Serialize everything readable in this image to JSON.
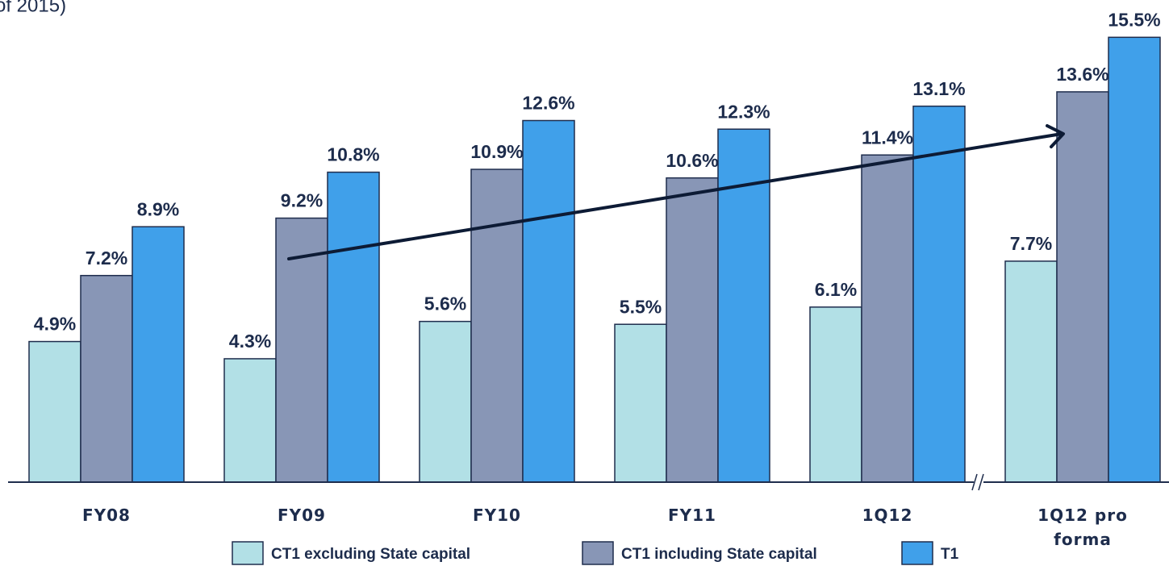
{
  "chart_data": {
    "type": "bar",
    "subtitle": "of 2015)",
    "categories": [
      "FY08",
      "FY09",
      "FY10",
      "FY11",
      "1Q12",
      "1Q12 pro forma"
    ],
    "series": [
      {
        "name": "CT1 excluding State capital",
        "color": "#b2e0e6",
        "values": [
          4.9,
          4.3,
          5.6,
          5.5,
          6.1,
          7.7
        ],
        "value_labels": [
          "4.9%",
          "4.3%",
          "5.6%",
          "5.5%",
          "6.1%",
          "7.7%"
        ]
      },
      {
        "name": "CT1 including State capital",
        "color": "#8896b6",
        "values": [
          7.2,
          9.2,
          10.9,
          10.6,
          11.4,
          13.6
        ],
        "value_labels": [
          "7.2%",
          "9.2%",
          "10.9%",
          "10.6%",
          "11.4%",
          "13.6%"
        ]
      },
      {
        "name": "T1",
        "color": "#40a0ea",
        "values": [
          8.9,
          10.8,
          12.6,
          12.3,
          13.1,
          15.5
        ],
        "value_labels": [
          "8.9%",
          "10.8%",
          "12.6%",
          "12.3%",
          "13.1%",
          "15.5%"
        ]
      }
    ],
    "ylim": [
      0,
      16.8
    ]
  }
}
